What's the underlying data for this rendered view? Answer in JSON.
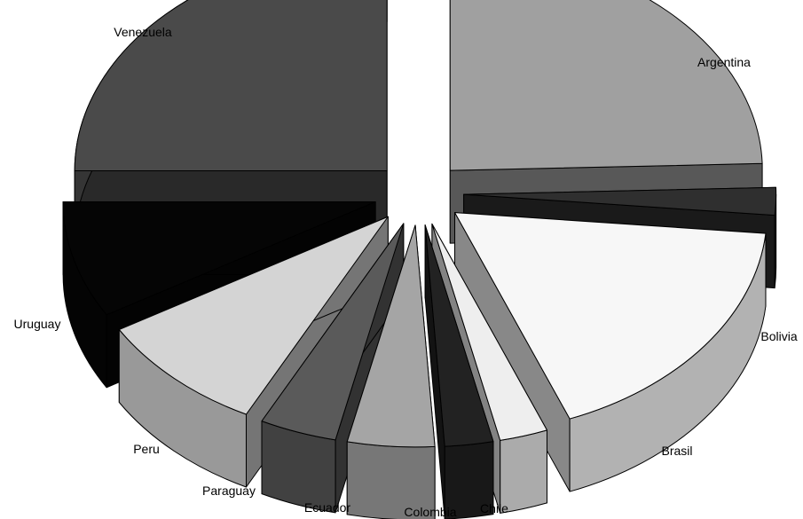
{
  "chart_data": {
    "type": "pie",
    "style": "3d-exploded",
    "title": "",
    "categories": [
      "Argentina",
      "Bolivia",
      "Brasil",
      "Chile",
      "Colombia",
      "Ecuador",
      "Paraguay",
      "Peru",
      "Uruguay",
      "Venezuela"
    ],
    "values": [
      24.5,
      2.0,
      17.5,
      2.5,
      2.5,
      4.5,
      4.0,
      9.0,
      8.5,
      25.0
    ],
    "colors": {
      "Argentina": "#a0a0a0",
      "Bolivia": "#2f2f2f",
      "Brasil": "#f7f7f7",
      "Chile": "#eeeeee",
      "Colombia": "#222222",
      "Ecuador": "#a5a5a5",
      "Paraguay": "#5a5a5a",
      "Peru": "#d4d4d4",
      "Uruguay": "#050505",
      "Venezuela": "#4a4a4a"
    },
    "legend": "none",
    "labels_shown": "category names next to slices"
  }
}
